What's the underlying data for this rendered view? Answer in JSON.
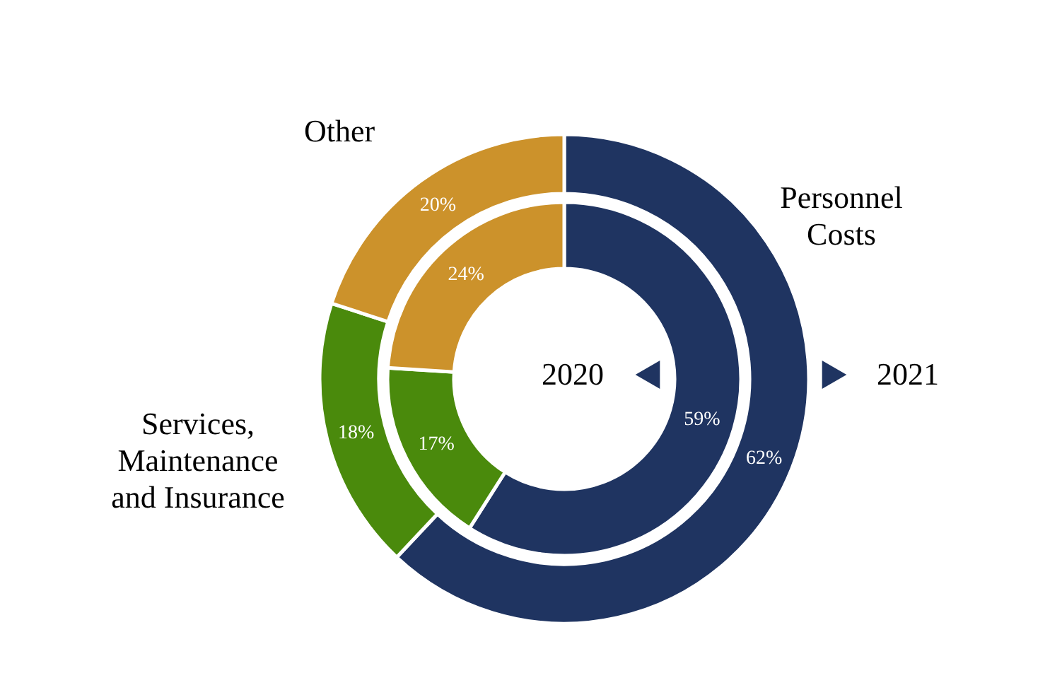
{
  "chart_data": {
    "type": "donut",
    "categories": [
      "Personnel\nCosts",
      "Services,\nMaintenance\nand Insurance",
      "Other"
    ],
    "colors": [
      "#1f3461",
      "#4a8a0c",
      "#cc922b"
    ],
    "series": [
      {
        "name": "2020",
        "values": [
          59,
          17,
          24
        ],
        "value_labels": [
          "59%",
          "17%",
          "24%"
        ]
      },
      {
        "name": "2021",
        "values": [
          62,
          18,
          20
        ],
        "value_labels": [
          "62%",
          "18%",
          "20%"
        ]
      }
    ],
    "legend": "right"
  }
}
